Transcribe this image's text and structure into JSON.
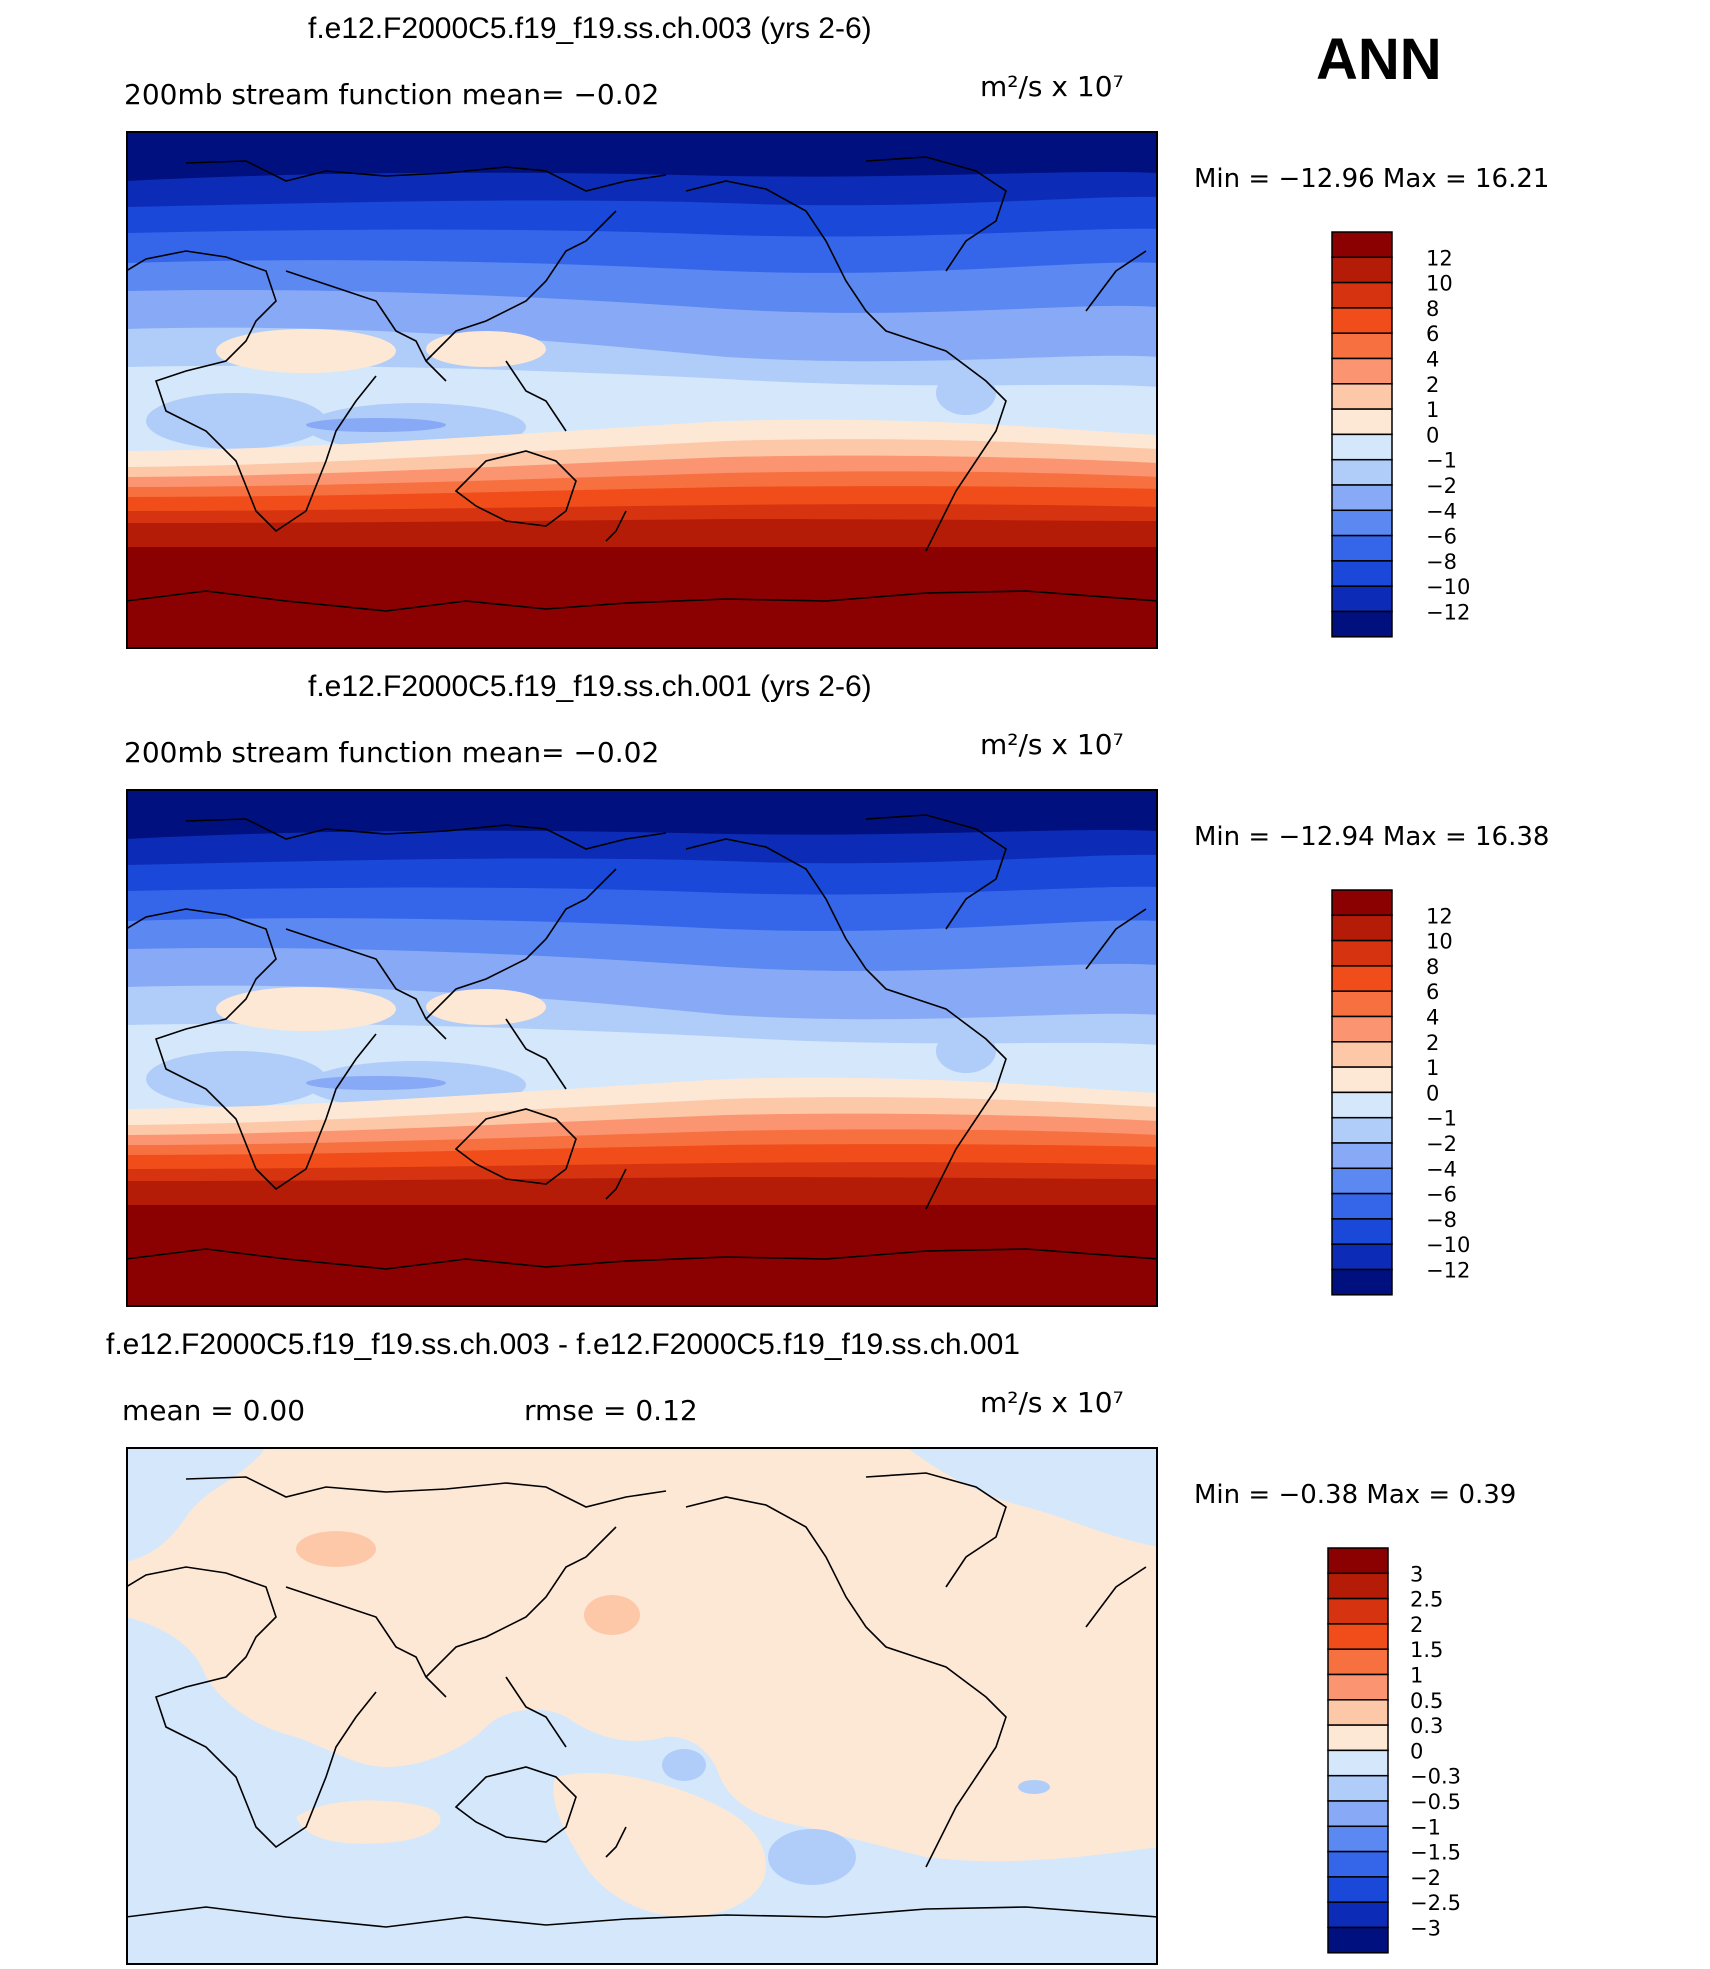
{
  "season": "ANN",
  "colors": {
    "main_scale": [
      "#8b0000",
      "#b51c08",
      "#d63410",
      "#f04d1a",
      "#f7703f",
      "#fb9470",
      "#fdc8a8",
      "#fde8d6",
      "#d4e7fb",
      "#b0ccf9",
      "#88aaf6",
      "#5c88f2",
      "#3566ea",
      "#1a48d8",
      "#0c2cb8",
      "#00117f"
    ],
    "diff_scale": [
      "#8b0000",
      "#b51c08",
      "#d63410",
      "#f04d1a",
      "#f7703f",
      "#fb9470",
      "#fdc8a8",
      "#fde8d6",
      "#d4e7fb",
      "#b0ccf9",
      "#88aaf6",
      "#5c88f2",
      "#3566ea",
      "#1a48d8",
      "#0c2cb8",
      "#00117f"
    ]
  },
  "panels": [
    {
      "title": "f.e12.F2000C5.f19_f19.ss.ch.003 (yrs 2-6)",
      "subtitle_left": "200mb stream function   mean=  −0.02",
      "units": "m²/s x 10⁷",
      "min_label": "Min  =  −12.96  Max  =    16.21",
      "labels": [
        "12",
        "10",
        "8",
        "6",
        "4",
        "2",
        "1",
        "0",
        "−1",
        "−2",
        "−4",
        "−6",
        "−8",
        "−10",
        "−12"
      ]
    },
    {
      "title": "f.e12.F2000C5.f19_f19.ss.ch.001 (yrs 2-6)",
      "subtitle_left": "200mb stream function   mean=  −0.02",
      "units": "m²/s x 10⁷",
      "min_label": "Min  =  −12.94  Max  =    16.38",
      "labels": [
        "12",
        "10",
        "8",
        "6",
        "4",
        "2",
        "1",
        "0",
        "−1",
        "−2",
        "−4",
        "−6",
        "−8",
        "−10",
        "−12"
      ]
    },
    {
      "title": "f.e12.F2000C5.f19_f19.ss.ch.003 - f.e12.F2000C5.f19_f19.ss.ch.001",
      "subtitle_mean": "mean  =     0.00",
      "subtitle_rmse": "rmse  =     0.12",
      "units": "m²/s x 10⁷",
      "min_label": "Min  =    −0.38  Max  =      0.39",
      "labels": [
        "3",
        "2.5",
        "2",
        "1.5",
        "1",
        "0.5",
        "0.3",
        "0",
        "−0.3",
        "−0.5",
        "−1",
        "−1.5",
        "−2",
        "−2.5",
        "−3"
      ]
    }
  ]
}
